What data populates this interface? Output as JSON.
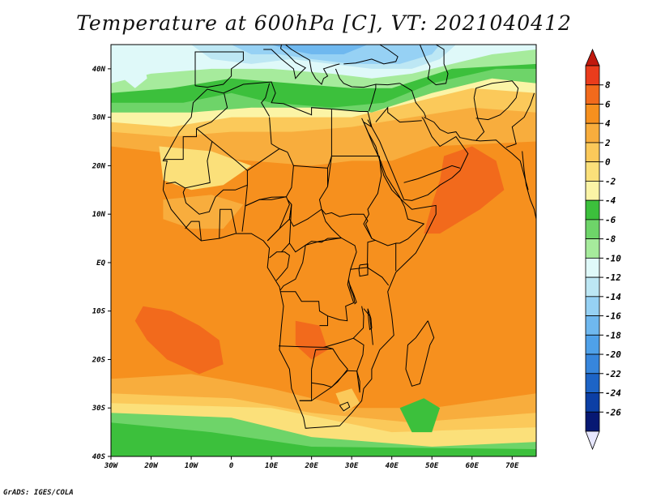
{
  "title": "Temperature at 600hPa [C], VT: 2021040412",
  "credit": "GrADS: IGES/COLA",
  "map": {
    "lon_range": [
      -30,
      76
    ],
    "lat_range": [
      -40,
      45
    ],
    "x_ticks": [
      "30W",
      "20W",
      "10W",
      "0",
      "10E",
      "20E",
      "30E",
      "40E",
      "50E",
      "60E",
      "70E"
    ],
    "y_ticks": [
      "40S",
      "30S",
      "20S",
      "10S",
      "EQ",
      "10N",
      "20N",
      "30N",
      "40N"
    ]
  },
  "colorbar": {
    "labels": [
      "8",
      "6",
      "4",
      "2",
      "0",
      "-2",
      "-4",
      "-6",
      "-8",
      "-10",
      "-12",
      "-14",
      "-16",
      "-18",
      "-20",
      "-22",
      "-24",
      "-26"
    ],
    "colors": [
      "#ea3c1c",
      "#f26a1c",
      "#f6901e",
      "#f8ad3d",
      "#fbc95a",
      "#fbe07a",
      "#fbf4a6",
      "#3cc03c",
      "#6ed469",
      "#a6eb9c",
      "#dff9f9",
      "#bde7f4",
      "#96d1f4",
      "#6fb8ef",
      "#4fa1e9",
      "#3786dc",
      "#1d64c6",
      "#0c3fa5",
      "#071873"
    ],
    "top_color": "#c0190e",
    "bottom_color": "#e7e7ff"
  },
  "field_colors": {
    "orange": "#f6901e",
    "light_orange": "#f8ad3d",
    "red_orange": "#f26a1c",
    "pale_orange": "#fbc95a",
    "yellow": "#fbe07a",
    "pale_yellow": "#fbf4a6",
    "green": "#3cc03c",
    "light_green": "#6ed469",
    "pale_green": "#a6eb9c",
    "cyan": "#dff9f9",
    "light_blue": "#bde7f4",
    "blue": "#96d1f4",
    "mid_blue": "#6fb8ef"
  }
}
